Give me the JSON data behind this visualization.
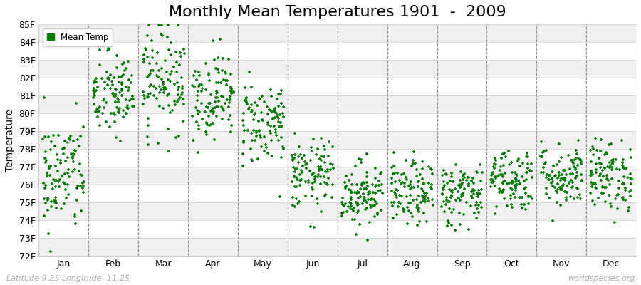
{
  "title": "Monthly Mean Temperatures 1901  -  2009",
  "ylabel": "Temperature",
  "xlabel": "",
  "footer_left": "Latitude 9.25 Longitude -11.25",
  "footer_right": "worldspecies.org",
  "legend_label": "Mean Temp",
  "months": [
    "Jan",
    "Feb",
    "Mar",
    "Apr",
    "May",
    "Jun",
    "Jul",
    "Aug",
    "Sep",
    "Oct",
    "Nov",
    "Dec"
  ],
  "monthly_means": [
    76.5,
    81.0,
    82.0,
    81.0,
    79.5,
    76.5,
    75.5,
    75.5,
    75.5,
    76.3,
    76.5,
    76.5
  ],
  "monthly_stds": [
    1.6,
    1.2,
    1.5,
    1.2,
    1.2,
    1.0,
    0.9,
    0.9,
    0.9,
    0.9,
    0.9,
    1.0
  ],
  "n_years": 109,
  "ylim_min": 72,
  "ylim_max": 85,
  "dot_color": "#008000",
  "dot_size": 9,
  "bg_color": "#ffffff",
  "plot_bg_color": "#ffffff",
  "band_color_even": "#f0f0f0",
  "band_color_odd": "#ffffff",
  "title_fontsize": 16,
  "tick_fontsize": 9,
  "label_fontsize": 10,
  "footer_fontsize": 8,
  "grid_color": "#cccccc",
  "vline_color": "#888888"
}
